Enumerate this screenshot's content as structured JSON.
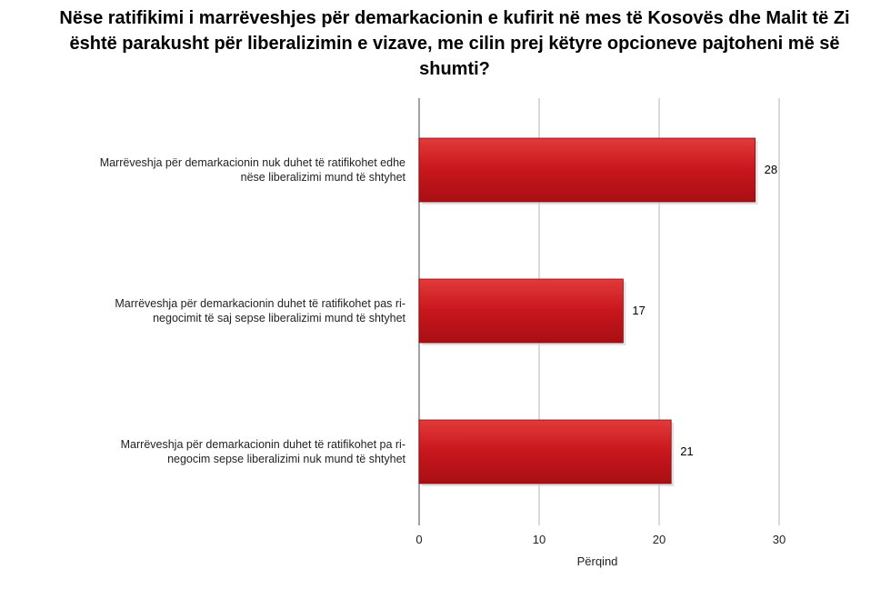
{
  "chart_data": {
    "type": "bar",
    "orientation": "horizontal",
    "title": "Nëse ratifikimi i marrëveshjes për demarkacionin e kufirit në mes të Kosovës dhe Malit të Zi është parakusht për liberalizimin e vizave, me cilin prej këtyre opcioneve pajtoheni më së shumti?",
    "categories": [
      "Marrëveshja për demarkacionin nuk duhet të ratifikohet edhe nëse liberalizimi mund të shtyhet",
      "Marrëveshja për demarkacionin duhet të ratifikohet pas ri-negocimit të saj sepse liberalizimi mund të shtyhet",
      "Marrëveshja për demarkacionin duhet të ratifikohet pa ri-negocim sepse liberalizimi nuk mund të shtyhet"
    ],
    "category_lines": [
      [
        "Marrëveshja për demarkacionin nuk duhet të ratifikohet edhe",
        "nëse liberalizimi mund të shtyhet"
      ],
      [
        "Marrëveshja për demarkacionin duhet të ratifikohet pas ri-",
        "negocimit të saj sepse liberalizimi mund të shtyhet"
      ],
      [
        "Marrëveshja për demarkacionin duhet të ratifikohet pa ri-",
        "negocim sepse liberalizimi nuk mund të shtyhet"
      ]
    ],
    "values": [
      28,
      17,
      21
    ],
    "value_labels": [
      "28",
      "17",
      "21"
    ],
    "xlabel": "Përqind",
    "xlim": [
      0,
      30
    ],
    "xticks": [
      0,
      10,
      20,
      30
    ],
    "grid": true,
    "bar_color": "#c8161d"
  }
}
